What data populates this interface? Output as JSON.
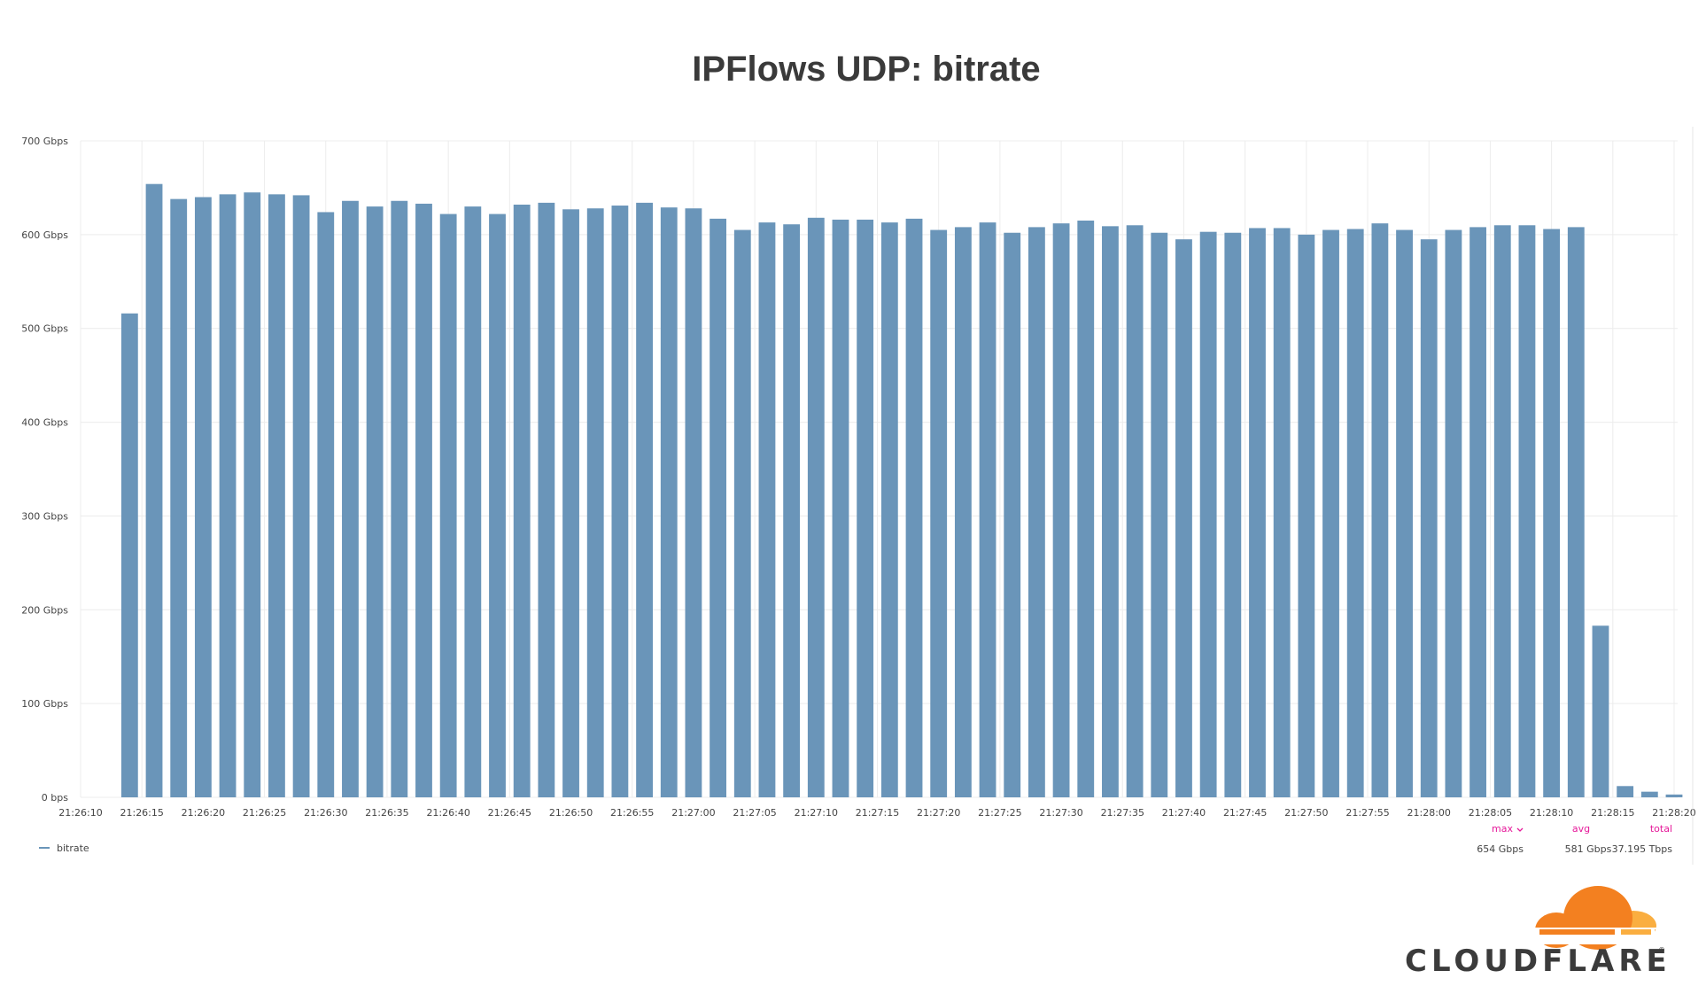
{
  "chart_data": {
    "type": "bar",
    "title": "IPFlows UDP: bitrate",
    "xlabel": "",
    "ylabel": "",
    "ylim": [
      0,
      700
    ],
    "yticks": [
      {
        "value": 0,
        "label": "0 bps"
      },
      {
        "value": 100,
        "label": "100 Gbps"
      },
      {
        "value": 200,
        "label": "200 Gbps"
      },
      {
        "value": 300,
        "label": "300 Gbps"
      },
      {
        "value": 400,
        "label": "400 Gbps"
      },
      {
        "value": 500,
        "label": "500 Gbps"
      },
      {
        "value": 600,
        "label": "600 Gbps"
      },
      {
        "value": 700,
        "label": "700 Gbps"
      }
    ],
    "xticks": [
      "21:26:10",
      "21:26:15",
      "21:26:20",
      "21:26:25",
      "21:26:30",
      "21:26:35",
      "21:26:40",
      "21:26:45",
      "21:26:50",
      "21:26:55",
      "21:27:00",
      "21:27:05",
      "21:27:10",
      "21:27:15",
      "21:27:20",
      "21:27:25",
      "21:27:30",
      "21:27:35",
      "21:27:40",
      "21:27:45",
      "21:27:50",
      "21:27:55",
      "21:28:00",
      "21:28:05",
      "21:28:10",
      "21:28:15",
      "21:28:20"
    ],
    "x_start": "21:26:10",
    "x_end": "21:28:20",
    "bar_interval_seconds": 2,
    "grid": true,
    "series": [
      {
        "name": "bitrate",
        "color": "#6a95b9",
        "x": [
          "21:26:14",
          "21:26:16",
          "21:26:18",
          "21:26:20",
          "21:26:22",
          "21:26:24",
          "21:26:26",
          "21:26:28",
          "21:26:30",
          "21:26:32",
          "21:26:34",
          "21:26:36",
          "21:26:38",
          "21:26:40",
          "21:26:42",
          "21:26:44",
          "21:26:46",
          "21:26:48",
          "21:26:50",
          "21:26:52",
          "21:26:54",
          "21:26:56",
          "21:26:58",
          "21:27:00",
          "21:27:02",
          "21:27:04",
          "21:27:06",
          "21:27:08",
          "21:27:10",
          "21:27:12",
          "21:27:14",
          "21:27:16",
          "21:27:18",
          "21:27:20",
          "21:27:22",
          "21:27:24",
          "21:27:26",
          "21:27:28",
          "21:27:30",
          "21:27:32",
          "21:27:34",
          "21:27:36",
          "21:27:38",
          "21:27:40",
          "21:27:42",
          "21:27:44",
          "21:27:46",
          "21:27:48",
          "21:27:50",
          "21:27:52",
          "21:27:54",
          "21:27:56",
          "21:27:58",
          "21:28:00",
          "21:28:02",
          "21:28:04",
          "21:28:06",
          "21:28:08",
          "21:28:10",
          "21:28:12",
          "21:28:14",
          "21:28:16",
          "21:28:18",
          "21:28:20"
        ],
        "values": [
          516,
          654,
          638,
          640,
          643,
          645,
          643,
          642,
          624,
          636,
          630,
          636,
          633,
          622,
          630,
          622,
          632,
          634,
          627,
          628,
          631,
          634,
          629,
          628,
          617,
          605,
          613,
          611,
          618,
          616,
          616,
          613,
          617,
          605,
          608,
          613,
          602,
          608,
          612,
          615,
          609,
          610,
          602,
          595,
          603,
          602,
          607,
          607,
          600,
          605,
          606,
          612,
          605,
          595,
          605,
          608,
          610,
          610,
          606,
          608,
          183,
          12,
          6,
          3
        ]
      }
    ],
    "legend": {
      "placement": "bottom-left",
      "entries": [
        "bitrate"
      ]
    },
    "stats": {
      "max_label": "max",
      "avg_label": "avg",
      "total_label": "total",
      "max_value": "654 Gbps",
      "avg_value": "581 Gbps",
      "total_value": "37.195 Tbps"
    }
  },
  "branding": {
    "logo_text": "CLOUDFLARE",
    "logo_icon": "cloud-icon",
    "logo_colors": [
      "#f38020",
      "#faae40"
    ]
  }
}
